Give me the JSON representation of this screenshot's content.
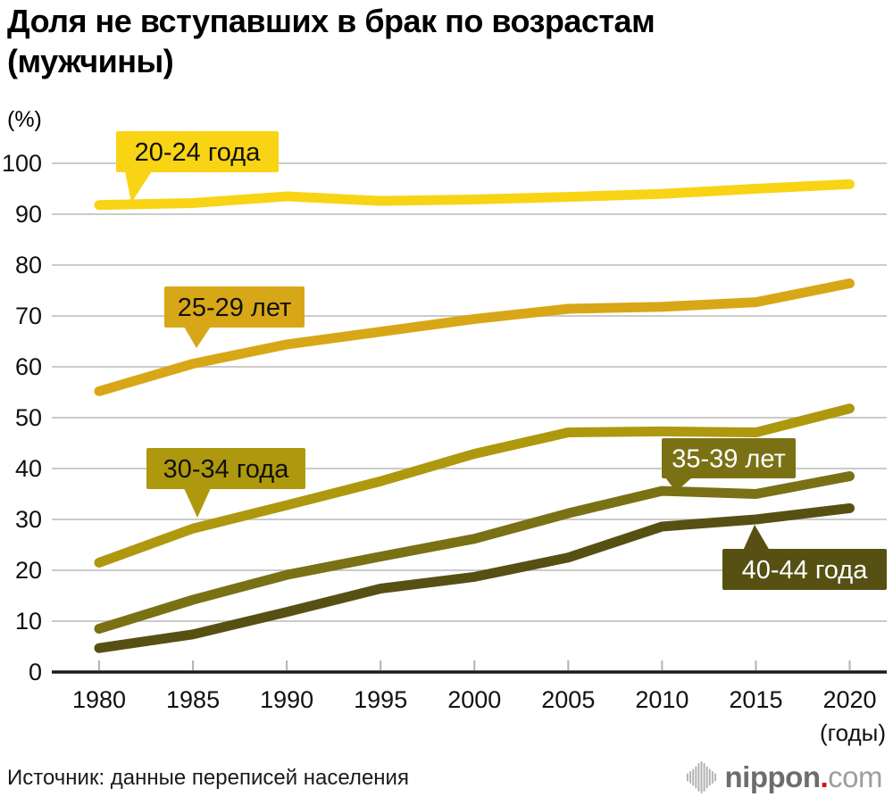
{
  "header": {
    "title_lines": [
      "Доля не вступавших в брак по возрастам",
      "(мужчины)"
    ]
  },
  "chart_data": {
    "type": "line",
    "title": "Доля не вступавших в брак по возрастам (мужчины)",
    "unit_label": "(%)",
    "x_axis_note": "(годы)",
    "x": [
      1980,
      1985,
      1990,
      1995,
      2000,
      2005,
      2010,
      2015,
      2020
    ],
    "ylim": [
      0,
      100
    ],
    "ytick_step": 10,
    "grid": "horizontal",
    "legend": "inline callout labels attached to each line",
    "series": [
      {
        "name": "20-24 года",
        "color": "#F8D414",
        "label_text_color": "#111111",
        "values": [
          91.8,
          92.2,
          93.5,
          92.6,
          92.9,
          93.4,
          94.0,
          95.0,
          95.9
        ]
      },
      {
        "name": "25-29 лет",
        "color": "#D8A717",
        "label_text_color": "#111111",
        "values": [
          55.2,
          60.6,
          64.4,
          66.9,
          69.4,
          71.4,
          71.8,
          72.7,
          76.4
        ]
      },
      {
        "name": "30-34 года",
        "color": "#AE980E",
        "label_text_color": "#111111",
        "values": [
          21.5,
          28.2,
          32.8,
          37.5,
          42.9,
          47.1,
          47.3,
          47.1,
          51.8
        ]
      },
      {
        "name": "35-39 лет",
        "color": "#7A7115",
        "label_text_color": "#FFFFFF",
        "values": [
          8.5,
          14.2,
          19.1,
          22.7,
          26.2,
          31.2,
          35.6,
          35.0,
          38.5
        ]
      },
      {
        "name": "40-44 года",
        "color": "#565113",
        "label_text_color": "#FFFFFF",
        "values": [
          4.7,
          7.4,
          11.8,
          16.4,
          18.7,
          22.5,
          28.6,
          30.0,
          32.2
        ]
      }
    ]
  },
  "footer": {
    "source": "Источник: данные переписей населения",
    "logo": {
      "name": "nippon.com",
      "text_main": "nippon",
      "dot": ".",
      "text_suffix": "com",
      "dot_color": "#E60012"
    }
  }
}
